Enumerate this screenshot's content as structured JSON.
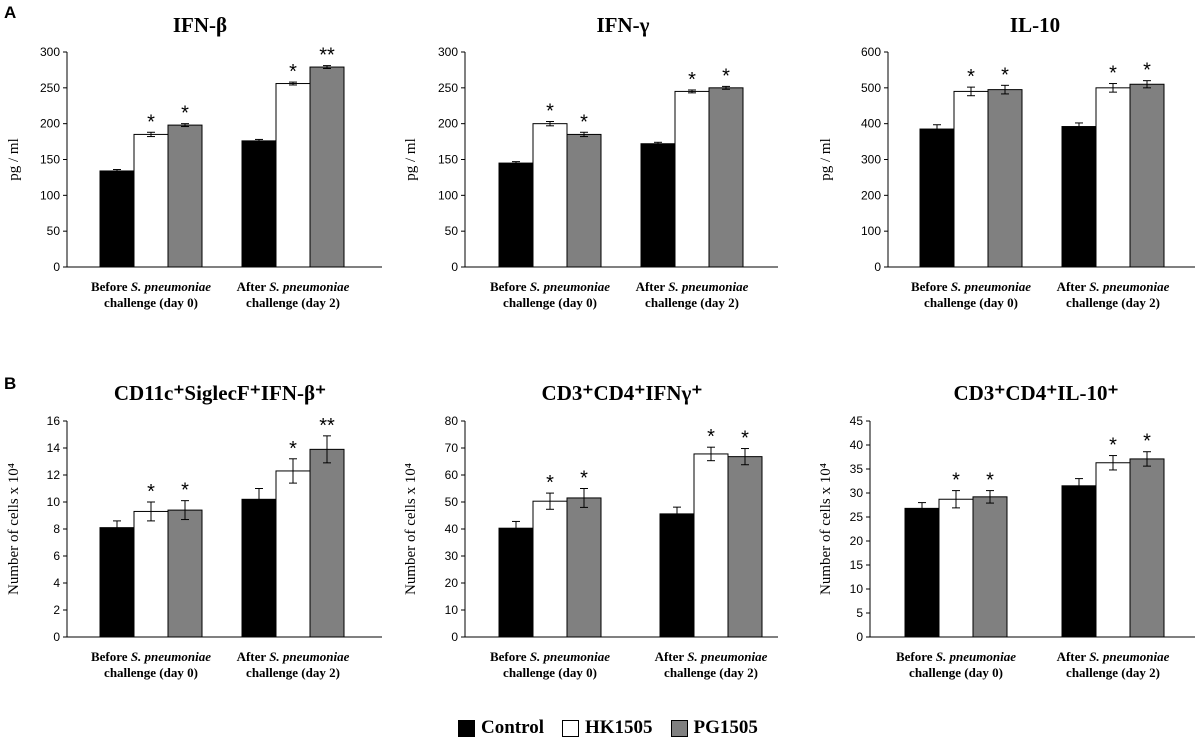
{
  "panels": {
    "a": "A",
    "b": "B"
  },
  "legend": [
    {
      "label": "Control",
      "color": "#000000"
    },
    {
      "label": "HK1505",
      "color": "#ffffff"
    },
    {
      "label": "PG1505",
      "color": "#808080"
    }
  ],
  "group_labels": [
    {
      "line1_pre": "Before ",
      "line1_italic": "S. pneumoniae",
      "line2": "challenge (day 0)"
    },
    {
      "line1_pre": "After ",
      "line1_italic": "S. pneumoniae",
      "line2": "challenge (day 2)"
    }
  ],
  "chart_data": [
    {
      "type": "bar",
      "title": "IFN-β",
      "ylabel": "pg / ml",
      "ylim": [
        0,
        300
      ],
      "ytick_step": 50,
      "categories": [
        "Before S. pneumoniae challenge (day 0)",
        "After S. pneumoniae challenge (day 2)"
      ],
      "series": [
        {
          "name": "Control",
          "values": [
            134,
            176
          ],
          "errors": [
            2,
            2
          ],
          "sig": [
            "",
            ""
          ]
        },
        {
          "name": "HK1505",
          "values": [
            185,
            256
          ],
          "errors": [
            3,
            2
          ],
          "sig": [
            "*",
            "*"
          ]
        },
        {
          "name": "PG1505",
          "values": [
            198,
            279
          ],
          "errors": [
            2,
            2
          ],
          "sig": [
            "*",
            "**"
          ]
        }
      ]
    },
    {
      "type": "bar",
      "title": "IFN-γ",
      "ylabel": "pg / ml",
      "ylim": [
        0,
        300
      ],
      "ytick_step": 50,
      "categories": [
        "Before S. pneumoniae challenge (day 0)",
        "After S. pneumoniae challenge (day 2)"
      ],
      "series": [
        {
          "name": "Control",
          "values": [
            145,
            172
          ],
          "errors": [
            2,
            2
          ],
          "sig": [
            "",
            ""
          ]
        },
        {
          "name": "HK1505",
          "values": [
            200,
            245
          ],
          "errors": [
            3,
            2
          ],
          "sig": [
            "*",
            "*"
          ]
        },
        {
          "name": "PG1505",
          "values": [
            185,
            250
          ],
          "errors": [
            3,
            2
          ],
          "sig": [
            "*",
            "*"
          ]
        }
      ]
    },
    {
      "type": "bar",
      "title": "IL-10",
      "ylabel": "pg / ml",
      "ylim": [
        0,
        600
      ],
      "ytick_step": 100,
      "categories": [
        "Before S. pneumoniae challenge (day 0)",
        "After S. pneumoniae challenge (day 2)"
      ],
      "series": [
        {
          "name": "Control",
          "values": [
            385,
            392
          ],
          "errors": [
            12,
            10
          ],
          "sig": [
            "",
            ""
          ]
        },
        {
          "name": "HK1505",
          "values": [
            490,
            500
          ],
          "errors": [
            12,
            12
          ],
          "sig": [
            "*",
            "*"
          ]
        },
        {
          "name": "PG1505",
          "values": [
            495,
            510
          ],
          "errors": [
            12,
            10
          ],
          "sig": [
            "*",
            "*"
          ]
        }
      ]
    },
    {
      "type": "bar",
      "title": "CD11c⁺SiglecF⁺IFN-β⁺",
      "ylabel": "Number of cells x 10⁴",
      "ylim": [
        0,
        16
      ],
      "ytick_step": 2,
      "categories": [
        "Before S. pneumoniae challenge (day 0)",
        "After S. pneumoniae challenge (day 2)"
      ],
      "series": [
        {
          "name": "Control",
          "values": [
            8.1,
            10.2
          ],
          "errors": [
            0.5,
            0.8
          ],
          "sig": [
            "",
            ""
          ]
        },
        {
          "name": "HK1505",
          "values": [
            9.3,
            12.3
          ],
          "errors": [
            0.7,
            0.9
          ],
          "sig": [
            "*",
            "*"
          ]
        },
        {
          "name": "PG1505",
          "values": [
            9.4,
            13.9
          ],
          "errors": [
            0.7,
            1.0
          ],
          "sig": [
            "*",
            "**"
          ]
        }
      ]
    },
    {
      "type": "bar",
      "title": "CD3⁺CD4⁺IFNγ⁺",
      "ylabel": "Number of cells x 10⁴",
      "ylim": [
        0,
        80
      ],
      "ytick_step": 10,
      "categories": [
        "Before S. pneumoniae challenge (day 0)",
        "After S. pneumoniae challenge (day 2)"
      ],
      "series": [
        {
          "name": "Control",
          "values": [
            40.3,
            45.6
          ],
          "errors": [
            2.5,
            2.5
          ],
          "sig": [
            "",
            ""
          ]
        },
        {
          "name": "HK1505",
          "values": [
            50.3,
            67.8
          ],
          "errors": [
            3.0,
            2.5
          ],
          "sig": [
            "*",
            "*"
          ]
        },
        {
          "name": "PG1505",
          "values": [
            51.5,
            66.8
          ],
          "errors": [
            3.5,
            3.0
          ],
          "sig": [
            "*",
            "*"
          ]
        }
      ]
    },
    {
      "type": "bar",
      "title": "CD3⁺CD4⁺IL-10⁺",
      "ylabel": "Number of cells x 10⁴",
      "ylim": [
        0,
        45
      ],
      "ytick_step": 5,
      "categories": [
        "Before S. pneumoniae challenge (day 0)",
        "After S. pneumoniae challenge (day 2)"
      ],
      "series": [
        {
          "name": "Control",
          "values": [
            26.8,
            31.5
          ],
          "errors": [
            1.2,
            1.5
          ],
          "sig": [
            "",
            ""
          ]
        },
        {
          "name": "HK1505",
          "values": [
            28.7,
            36.3
          ],
          "errors": [
            1.8,
            1.5
          ],
          "sig": [
            "*",
            "*"
          ]
        },
        {
          "name": "PG1505",
          "values": [
            29.2,
            37.1
          ],
          "errors": [
            1.3,
            1.5
          ],
          "sig": [
            "*",
            "*"
          ]
        }
      ]
    }
  ]
}
